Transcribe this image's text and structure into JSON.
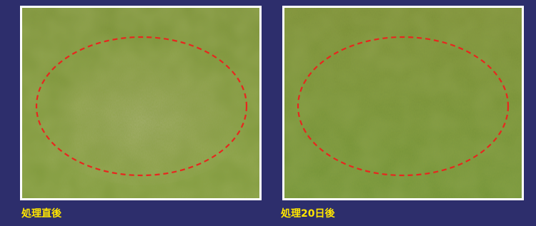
{
  "panels": [
    {
      "caption": "処理直後"
    },
    {
      "caption": "処理20日後"
    }
  ]
}
